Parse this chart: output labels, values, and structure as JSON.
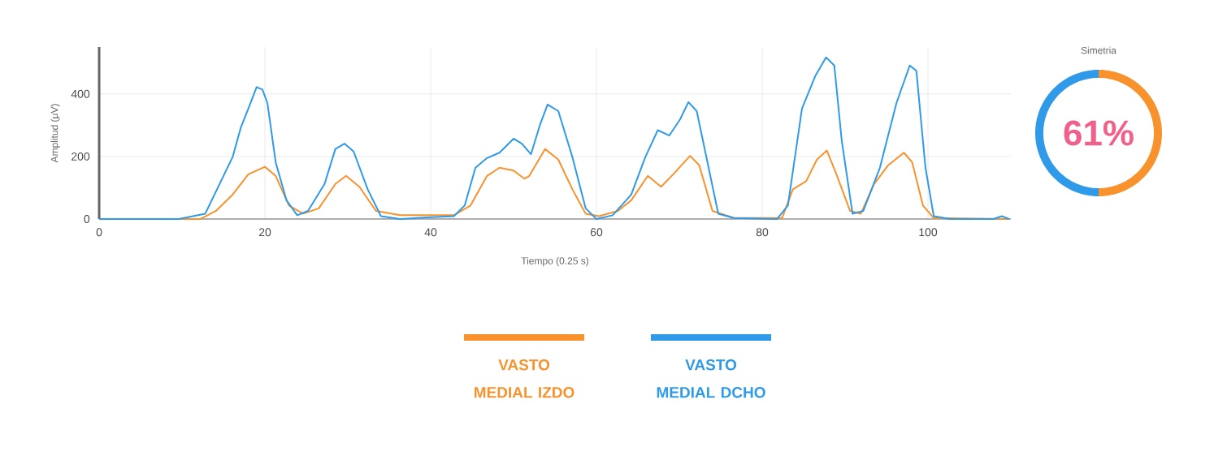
{
  "chart_data": [
    {
      "type": "line",
      "xlabel": "Tiempo (0.25 s)",
      "ylabel": "Amplitud (μV)",
      "xlim": [
        0,
        110
      ],
      "ylim": [
        0,
        550
      ],
      "xticks": [
        0,
        20,
        40,
        60,
        80,
        100
      ],
      "yticks": [
        0,
        200,
        400
      ],
      "grid": true,
      "legend": "bottom",
      "marker": "none",
      "line_style": "solid",
      "series": [
        {
          "name": "VASTO MEDIAL IZDO",
          "color": "#f7922d",
          "x": [
            0,
            12.2,
            14.1,
            16.1,
            18,
            20,
            21.3,
            22.9,
            24.6,
            26.5,
            28.5,
            29.8,
            31.4,
            33.4,
            36.3,
            38.2,
            42.8,
            44.8,
            46.8,
            48.3,
            50,
            51.3,
            51.9,
            53.8,
            55.4,
            57.1,
            58.7,
            60.3,
            62.6,
            64.2,
            66.2,
            67.8,
            69.4,
            71.3,
            72.4,
            74,
            76.6,
            82.4,
            83.7,
            85.3,
            86.6,
            87.8,
            88.9,
            90.6,
            91.9,
            93.5,
            95.2,
            97.1,
            98.1,
            99.4,
            100.7,
            109.8
          ],
          "values": [
            0,
            0,
            26,
            78,
            143,
            167,
            138,
            43,
            17,
            34,
            112,
            138,
            103,
            26,
            12,
            12,
            12,
            43,
            138,
            164,
            155,
            129,
            138,
            224,
            190,
            95,
            17,
            9,
            26,
            60,
            138,
            103,
            147,
            202,
            172,
            26,
            3,
            3,
            95,
            121,
            190,
            219,
            147,
            26,
            17,
            112,
            172,
            212,
            181,
            43,
            3,
            0
          ]
        },
        {
          "name": "VASTO MEDIAL DCHO",
          "color": "#2f9ae8",
          "x": [
            0,
            9.6,
            12.8,
            16.1,
            17.1,
            18,
            19,
            19.7,
            20.3,
            21.3,
            22.6,
            23.9,
            25.2,
            27.2,
            28.5,
            29.6,
            30.7,
            32.4,
            34,
            36.3,
            39.5,
            42.8,
            44.1,
            45.4,
            46.8,
            48.3,
            50,
            51,
            52.1,
            53.2,
            54.1,
            55.4,
            57.1,
            58.7,
            60,
            61.95,
            64.2,
            65.9,
            67.4,
            68.8,
            70.1,
            71.1,
            72.1,
            73.4,
            74.7,
            76.6,
            81.8,
            83.1,
            84.8,
            86.4,
            87.7,
            88.7,
            89.6,
            90.9,
            92.2,
            94.2,
            96.2,
            97.8,
            98.6,
            99.7,
            100.7,
            102.7,
            107.9,
            108.9,
            109.8
          ],
          "values": [
            0,
            0,
            17,
            198,
            293,
            353,
            422,
            414,
            371,
            181,
            60,
            12,
            26,
            112,
            224,
            241,
            216,
            95,
            9,
            0,
            5,
            9,
            43,
            164,
            195,
            212,
            257,
            241,
            207,
            302,
            366,
            345,
            198,
            34,
            0,
            12,
            78,
            198,
            284,
            267,
            319,
            374,
            345,
            181,
            17,
            3,
            0,
            43,
            353,
            457,
            517,
            491,
            250,
            17,
            26,
            164,
            371,
            491,
            474,
            164,
            9,
            0,
            0,
            9,
            0
          ]
        }
      ]
    },
    {
      "type": "donut",
      "title": "Simetria",
      "categories": [
        null,
        null
      ],
      "values": [
        50,
        50
      ],
      "colors": [
        "#f7922d",
        "#2f9ae8"
      ],
      "annotations": [
        "61%"
      ]
    }
  ]
}
